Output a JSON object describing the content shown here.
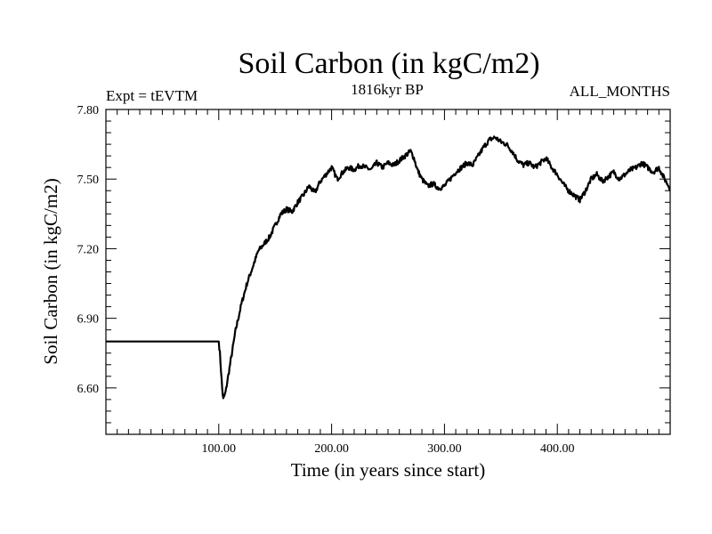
{
  "chart_data": {
    "type": "line",
    "title": "Soil Carbon (in kgC/m2)",
    "subtitle_left": "Expt = tEVTM",
    "subtitle_center": "1816kyr BP",
    "subtitle_right": "ALL_MONTHS",
    "xlabel": "Time (in years since start)",
    "ylabel": "Soil Carbon (in kgC/m2)",
    "xlim": [
      0,
      500
    ],
    "ylim": [
      6.4,
      7.8
    ],
    "x_ticks": [
      100,
      200,
      300,
      400
    ],
    "x_tick_labels": [
      "100.00",
      "200.00",
      "300.00",
      "400.00"
    ],
    "y_ticks": [
      6.6,
      6.9,
      7.2,
      7.5,
      7.8
    ],
    "y_tick_labels": [
      "6.60",
      "6.90",
      "7.20",
      "7.50",
      "7.80"
    ],
    "line_color": "#000000",
    "series": [
      {
        "name": "Soil Carbon",
        "x": [
          0,
          100,
          101,
          103,
          104,
          106,
          110,
          115,
          120,
          125,
          130,
          135,
          140,
          145,
          150,
          155,
          160,
          165,
          170,
          175,
          180,
          185,
          190,
          195,
          200,
          205,
          210,
          215,
          220,
          225,
          230,
          235,
          240,
          245,
          250,
          255,
          260,
          265,
          270,
          273,
          276,
          280,
          285,
          290,
          295,
          300,
          305,
          310,
          315,
          320,
          325,
          330,
          335,
          340,
          345,
          350,
          355,
          360,
          365,
          370,
          375,
          380,
          385,
          390,
          395,
          400,
          405,
          410,
          415,
          420,
          425,
          430,
          435,
          440,
          445,
          450,
          455,
          460,
          465,
          470,
          475,
          480,
          485,
          490,
          495,
          500
        ],
        "values": [
          6.8,
          6.8,
          6.75,
          6.6,
          6.55,
          6.58,
          6.7,
          6.85,
          6.96,
          7.05,
          7.12,
          7.19,
          7.22,
          7.25,
          7.3,
          7.35,
          7.37,
          7.36,
          7.4,
          7.43,
          7.47,
          7.44,
          7.49,
          7.52,
          7.55,
          7.5,
          7.53,
          7.55,
          7.54,
          7.56,
          7.55,
          7.54,
          7.57,
          7.55,
          7.57,
          7.56,
          7.58,
          7.6,
          7.62,
          7.59,
          7.54,
          7.5,
          7.47,
          7.48,
          7.46,
          7.47,
          7.5,
          7.53,
          7.55,
          7.57,
          7.56,
          7.6,
          7.64,
          7.67,
          7.68,
          7.66,
          7.65,
          7.62,
          7.58,
          7.56,
          7.57,
          7.55,
          7.57,
          7.59,
          7.55,
          7.52,
          7.48,
          7.45,
          7.43,
          7.41,
          7.45,
          7.5,
          7.52,
          7.49,
          7.51,
          7.53,
          7.5,
          7.52,
          7.54,
          7.55,
          7.57,
          7.55,
          7.53,
          7.55,
          7.5,
          7.46
        ]
      }
    ]
  }
}
